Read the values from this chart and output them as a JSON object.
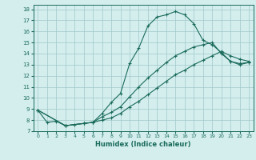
{
  "xlabel": "Humidex (Indice chaleur)",
  "bg_color": "#d4eeee",
  "grid_color": "#a0c8c8",
  "line_color": "#1a6b5a",
  "xlim": [
    -0.5,
    23.5
  ],
  "ylim": [
    7,
    18.4
  ],
  "xticks": [
    0,
    1,
    2,
    3,
    4,
    5,
    6,
    7,
    8,
    9,
    10,
    11,
    12,
    13,
    14,
    15,
    16,
    17,
    18,
    19,
    20,
    21,
    22,
    23
  ],
  "yticks": [
    7,
    8,
    9,
    10,
    11,
    12,
    13,
    14,
    15,
    16,
    17,
    18
  ],
  "line1_x": [
    0,
    1,
    2,
    3,
    4,
    5,
    6,
    7,
    8,
    9,
    10,
    11,
    12,
    13,
    14,
    15,
    16,
    17,
    18,
    19,
    20,
    21,
    22,
    23
  ],
  "line1_y": [
    8.9,
    7.8,
    7.9,
    7.5,
    7.6,
    7.7,
    7.8,
    8.6,
    9.6,
    10.4,
    13.1,
    14.5,
    16.5,
    17.3,
    17.5,
    17.8,
    17.5,
    16.7,
    15.2,
    14.8,
    14.1,
    13.3,
    13.1,
    13.2
  ],
  "line2_x": [
    0,
    3,
    5,
    6,
    7,
    8,
    9,
    10,
    11,
    12,
    13,
    14,
    15,
    16,
    17,
    18,
    19,
    20,
    21,
    22,
    23
  ],
  "line2_y": [
    8.9,
    7.5,
    7.7,
    7.8,
    8.3,
    8.7,
    9.2,
    10.1,
    11.0,
    11.8,
    12.5,
    13.2,
    13.8,
    14.2,
    14.6,
    14.8,
    15.0,
    14.0,
    13.3,
    13.0,
    13.2
  ],
  "line3_x": [
    0,
    3,
    5,
    6,
    7,
    8,
    9,
    10,
    11,
    12,
    13,
    14,
    15,
    16,
    17,
    18,
    19,
    20,
    21,
    22,
    23
  ],
  "line3_y": [
    8.9,
    7.5,
    7.7,
    7.8,
    8.0,
    8.2,
    8.6,
    9.2,
    9.7,
    10.3,
    10.9,
    11.5,
    12.1,
    12.5,
    13.0,
    13.4,
    13.8,
    14.2,
    13.8,
    13.5,
    13.3
  ]
}
